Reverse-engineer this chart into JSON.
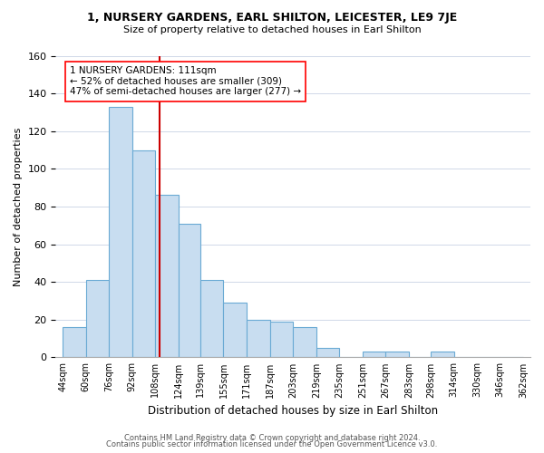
{
  "title": "1, NURSERY GARDENS, EARL SHILTON, LEICESTER, LE9 7JE",
  "subtitle": "Size of property relative to detached houses in Earl Shilton",
  "xlabel": "Distribution of detached houses by size in Earl Shilton",
  "ylabel": "Number of detached properties",
  "footnote1": "Contains HM Land Registry data © Crown copyright and database right 2024.",
  "footnote2": "Contains public sector information licensed under the Open Government Licence v3.0.",
  "bin_labels": [
    "44sqm",
    "60sqm",
    "76sqm",
    "92sqm",
    "108sqm",
    "124sqm",
    "139sqm",
    "155sqm",
    "171sqm",
    "187sqm",
    "203sqm",
    "219sqm",
    "235sqm",
    "251sqm",
    "267sqm",
    "283sqm",
    "298sqm",
    "314sqm",
    "330sqm",
    "346sqm",
    "362sqm"
  ],
  "bar_values": [
    16,
    41,
    133,
    110,
    86,
    71,
    41,
    29,
    20,
    19,
    16,
    5,
    0,
    3,
    3,
    0,
    3,
    0,
    0,
    0
  ],
  "bar_color": "#c8ddf0",
  "bar_edge_color": "#6aaad4",
  "red_line_x": 111,
  "annotation_title": "1 NURSERY GARDENS: 111sqm",
  "annotation_line1": "← 52% of detached houses are smaller (309)",
  "annotation_line2": "47% of semi-detached houses are larger (277) →",
  "ylim": [
    0,
    160
  ],
  "yticks": [
    0,
    20,
    40,
    60,
    80,
    100,
    120,
    140,
    160
  ],
  "background_color": "#ffffff",
  "grid_color": "#d0d8e8"
}
